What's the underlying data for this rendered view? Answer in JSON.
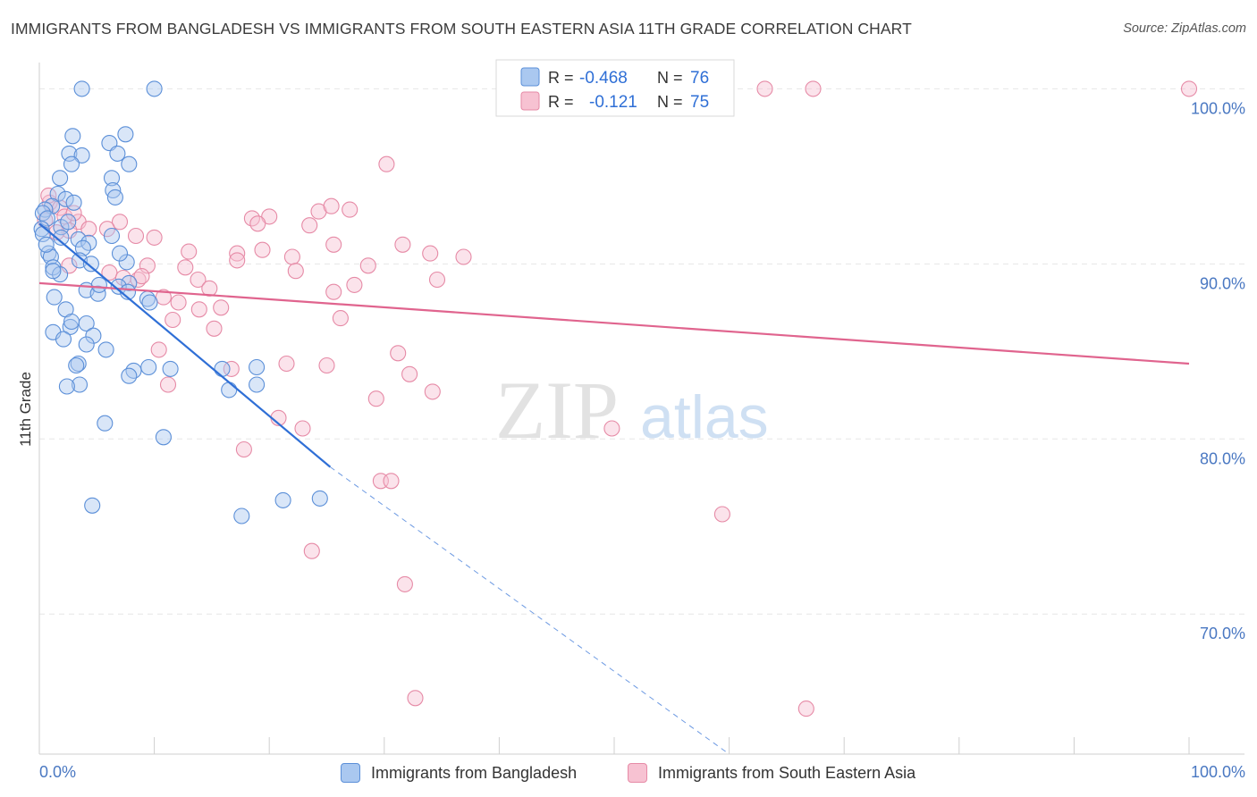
{
  "header": {
    "title": "IMMIGRANTS FROM BANGLADESH VS IMMIGRANTS FROM SOUTH EASTERN ASIA 11TH GRADE CORRELATION CHART",
    "source": "Source: ZipAtlas.com"
  },
  "watermark": {
    "zip": "ZIP",
    "atlas": "atlas"
  },
  "legend": {
    "rows": [
      {
        "r_label": "R =",
        "r_value": "-0.468",
        "n_label": "N =",
        "n_value": "76"
      },
      {
        "r_label": "R =",
        "r_value": "-0.121",
        "n_label": "N =",
        "n_value": "75"
      }
    ]
  },
  "bottom_legend": {
    "items": [
      "Immigrants from Bangladesh",
      "Immigrants from South Eastern Asia"
    ]
  },
  "chart_data": {
    "type": "scatter",
    "title": "IMMIGRANTS FROM BANGLADESH VS IMMIGRANTS FROM SOUTH EASTERN ASIA 11TH GRADE CORRELATION CHART",
    "xlabel": "",
    "ylabel": "11th Grade",
    "xlim": [
      0,
      100
    ],
    "ylim": [
      62,
      101.5
    ],
    "x_tick_labels": [
      "0.0%",
      "100.0%"
    ],
    "y_ticks": [
      70,
      80,
      90,
      100
    ],
    "y_tick_labels": [
      "70.0%",
      "80.0%",
      "90.0%",
      "100.0%"
    ],
    "grid": true,
    "legend_position": "top-center",
    "colors": {
      "blue_fill": "#aac8f0",
      "blue_stroke": "#5b8fd8",
      "blue_line": "#2f6fd6",
      "pink_fill": "#f7c2d2",
      "pink_stroke": "#e68aa6",
      "pink_line": "#e0648e",
      "tick_text": "#4a78c2"
    },
    "series": [
      {
        "name": "Immigrants from Bangladesh",
        "r": -0.468,
        "n": 76,
        "trend": {
          "x": [
            0,
            25.3
          ],
          "y": [
            92.3,
            78.4
          ]
        },
        "trend_extension": {
          "x": [
            25.3,
            60
          ],
          "y": [
            78.4,
            62
          ]
        },
        "points": [
          [
            3.7,
            100
          ],
          [
            10,
            100
          ],
          [
            2.9,
            97.3
          ],
          [
            7.5,
            97.4
          ],
          [
            6.1,
            96.9
          ],
          [
            2.6,
            96.3
          ],
          [
            3.7,
            96.2
          ],
          [
            6.8,
            96.3
          ],
          [
            2.8,
            95.7
          ],
          [
            7.8,
            95.7
          ],
          [
            1.8,
            94.9
          ],
          [
            6.3,
            94.9
          ],
          [
            6.4,
            94.2
          ],
          [
            1.6,
            94.0
          ],
          [
            2.3,
            93.7
          ],
          [
            3.0,
            93.5
          ],
          [
            6.6,
            93.8
          ],
          [
            1.1,
            93.3
          ],
          [
            0.5,
            93.1
          ],
          [
            0.3,
            92.9
          ],
          [
            0.7,
            92.6
          ],
          [
            1.9,
            92.1
          ],
          [
            0.2,
            92.0
          ],
          [
            0.3,
            91.7
          ],
          [
            6.3,
            91.6
          ],
          [
            1.9,
            91.5
          ],
          [
            3.4,
            91.4
          ],
          [
            4.3,
            91.2
          ],
          [
            3.8,
            90.9
          ],
          [
            0.8,
            90.6
          ],
          [
            1.0,
            90.4
          ],
          [
            3.5,
            90.2
          ],
          [
            4.5,
            90.0
          ],
          [
            7.6,
            90.1
          ],
          [
            1.2,
            89.8
          ],
          [
            1.8,
            89.4
          ],
          [
            7.8,
            88.9
          ],
          [
            6.9,
            88.7
          ],
          [
            4.1,
            88.5
          ],
          [
            5.1,
            88.3
          ],
          [
            7.7,
            88.4
          ],
          [
            9.4,
            88.0
          ],
          [
            1.3,
            88.1
          ],
          [
            2.3,
            87.4
          ],
          [
            4.1,
            86.6
          ],
          [
            2.7,
            86.4
          ],
          [
            1.2,
            86.1
          ],
          [
            4.7,
            85.9
          ],
          [
            2.1,
            85.7
          ],
          [
            4.1,
            85.4
          ],
          [
            5.8,
            85.1
          ],
          [
            3.4,
            84.3
          ],
          [
            11.4,
            84.0
          ],
          [
            9.5,
            84.1
          ],
          [
            8.2,
            83.9
          ],
          [
            7.8,
            83.6
          ],
          [
            15.9,
            84.0
          ],
          [
            18.9,
            84.1
          ],
          [
            3.5,
            83.1
          ],
          [
            2.4,
            83.0
          ],
          [
            16.5,
            82.8
          ],
          [
            18.9,
            83.1
          ],
          [
            5.7,
            80.9
          ],
          [
            10.8,
            80.1
          ],
          [
            4.6,
            76.2
          ],
          [
            21.2,
            76.5
          ],
          [
            17.6,
            75.6
          ],
          [
            24.4,
            76.6
          ],
          [
            1.2,
            89.6
          ],
          [
            7.0,
            90.6
          ],
          [
            0.6,
            91.1
          ],
          [
            2.5,
            92.4
          ],
          [
            5.2,
            88.8
          ],
          [
            2.8,
            86.7
          ],
          [
            9.6,
            87.8
          ],
          [
            3.2,
            84.2
          ]
        ]
      },
      {
        "name": "Immigrants from South Eastern Asia",
        "r": -0.121,
        "n": 75,
        "trend": {
          "x": [
            0,
            100
          ],
          "y": [
            88.9,
            84.3
          ]
        },
        "points": [
          [
            63.1,
            100
          ],
          [
            67.3,
            100
          ],
          [
            100,
            100
          ],
          [
            30.2,
            95.7
          ],
          [
            0.9,
            93.5
          ],
          [
            1.8,
            93.2
          ],
          [
            2.2,
            92.7
          ],
          [
            3.4,
            92.4
          ],
          [
            7.0,
            92.4
          ],
          [
            18.5,
            92.6
          ],
          [
            20.0,
            92.7
          ],
          [
            23.5,
            92.2
          ],
          [
            24.3,
            93.0
          ],
          [
            27.0,
            93.1
          ],
          [
            25.4,
            93.3
          ],
          [
            0.5,
            92.5
          ],
          [
            2.6,
            91.9
          ],
          [
            5.9,
            92.0
          ],
          [
            19.0,
            92.3
          ],
          [
            1.5,
            91.8
          ],
          [
            8.4,
            91.6
          ],
          [
            10.0,
            91.5
          ],
          [
            25.6,
            91.1
          ],
          [
            31.6,
            91.1
          ],
          [
            13.0,
            90.7
          ],
          [
            17.2,
            90.6
          ],
          [
            19.4,
            90.8
          ],
          [
            22.0,
            90.4
          ],
          [
            17.2,
            90.2
          ],
          [
            34.0,
            90.6
          ],
          [
            36.9,
            90.4
          ],
          [
            12.7,
            89.8
          ],
          [
            9.4,
            89.9
          ],
          [
            28.6,
            89.9
          ],
          [
            22.3,
            89.6
          ],
          [
            6.1,
            89.5
          ],
          [
            7.3,
            89.2
          ],
          [
            8.6,
            89.1
          ],
          [
            13.8,
            89.1
          ],
          [
            34.6,
            89.1
          ],
          [
            27.4,
            88.8
          ],
          [
            14.8,
            88.6
          ],
          [
            10.8,
            88.1
          ],
          [
            12.1,
            87.8
          ],
          [
            11.6,
            86.8
          ],
          [
            15.8,
            87.5
          ],
          [
            13.9,
            87.4
          ],
          [
            26.2,
            86.9
          ],
          [
            15.2,
            86.3
          ],
          [
            10.4,
            85.1
          ],
          [
            31.2,
            84.9
          ],
          [
            21.5,
            84.3
          ],
          [
            25.0,
            84.2
          ],
          [
            16.7,
            84.0
          ],
          [
            32.2,
            83.7
          ],
          [
            11.2,
            83.1
          ],
          [
            29.3,
            82.3
          ],
          [
            34.2,
            82.7
          ],
          [
            20.8,
            81.2
          ],
          [
            22.9,
            80.6
          ],
          [
            49.8,
            80.6
          ],
          [
            17.8,
            79.4
          ],
          [
            29.7,
            77.6
          ],
          [
            30.6,
            77.6
          ],
          [
            59.4,
            75.7
          ],
          [
            23.7,
            73.6
          ],
          [
            31.8,
            71.7
          ],
          [
            32.7,
            65.2
          ],
          [
            66.7,
            64.6
          ],
          [
            4.3,
            92.0
          ],
          [
            2.6,
            89.9
          ],
          [
            8.9,
            89.3
          ],
          [
            0.8,
            93.9
          ],
          [
            3.0,
            92.9
          ],
          [
            25.6,
            88.4
          ]
        ]
      }
    ]
  }
}
